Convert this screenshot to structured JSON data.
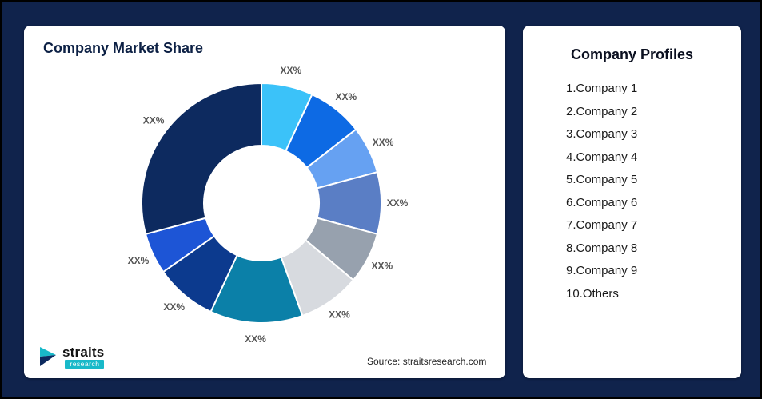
{
  "page": {
    "background": "#10234c",
    "border_color": "#000000"
  },
  "market_share_card": {
    "title": "Company Market Share",
    "source": "Source: straitsresearch.com"
  },
  "logo": {
    "brand": "straits",
    "sub_brand": "research",
    "accent_color": "#19b9c9",
    "dark_color": "#0d2a5f"
  },
  "profiles_card": {
    "title": "Company Profiles",
    "items": [
      "1.Company 1",
      "2.Company 2",
      "3.Company 3",
      "4.Company 4",
      "5.Company 5",
      "6.Company 6",
      "7.Company 7",
      "8.Company 8",
      "9.Company 9",
      "10.Others"
    ]
  },
  "chart_data": {
    "type": "pie",
    "subtype": "donut",
    "title": "Company Market Share",
    "legend_position": "none",
    "start_angle_deg": 0,
    "direction": "clockwise",
    "note": "All slice data labels are masked as XX% in the source image; angles are visual estimates",
    "slices": [
      {
        "display_value": "XX%",
        "approx_angle_deg": 25,
        "color": "#3bc2f9"
      },
      {
        "display_value": "XX%",
        "approx_angle_deg": 27,
        "color": "#0d6ae4"
      },
      {
        "display_value": "XX%",
        "approx_angle_deg": 23,
        "color": "#66a1f2"
      },
      {
        "display_value": "XX%",
        "approx_angle_deg": 30,
        "color": "#5a7ec5"
      },
      {
        "display_value": "XX%",
        "approx_angle_deg": 25,
        "color": "#97a1ae"
      },
      {
        "display_value": "XX%",
        "approx_angle_deg": 30,
        "color": "#d7dadf"
      },
      {
        "display_value": "XX%",
        "approx_angle_deg": 45,
        "color": "#0b80a8"
      },
      {
        "display_value": "XX%",
        "approx_angle_deg": 30,
        "color": "#0c3a8e"
      },
      {
        "display_value": "XX%",
        "approx_angle_deg": 20,
        "color": "#1d55d6"
      },
      {
        "display_value": "XX%",
        "approx_angle_deg": 105,
        "color": "#0d2a5f"
      }
    ]
  }
}
